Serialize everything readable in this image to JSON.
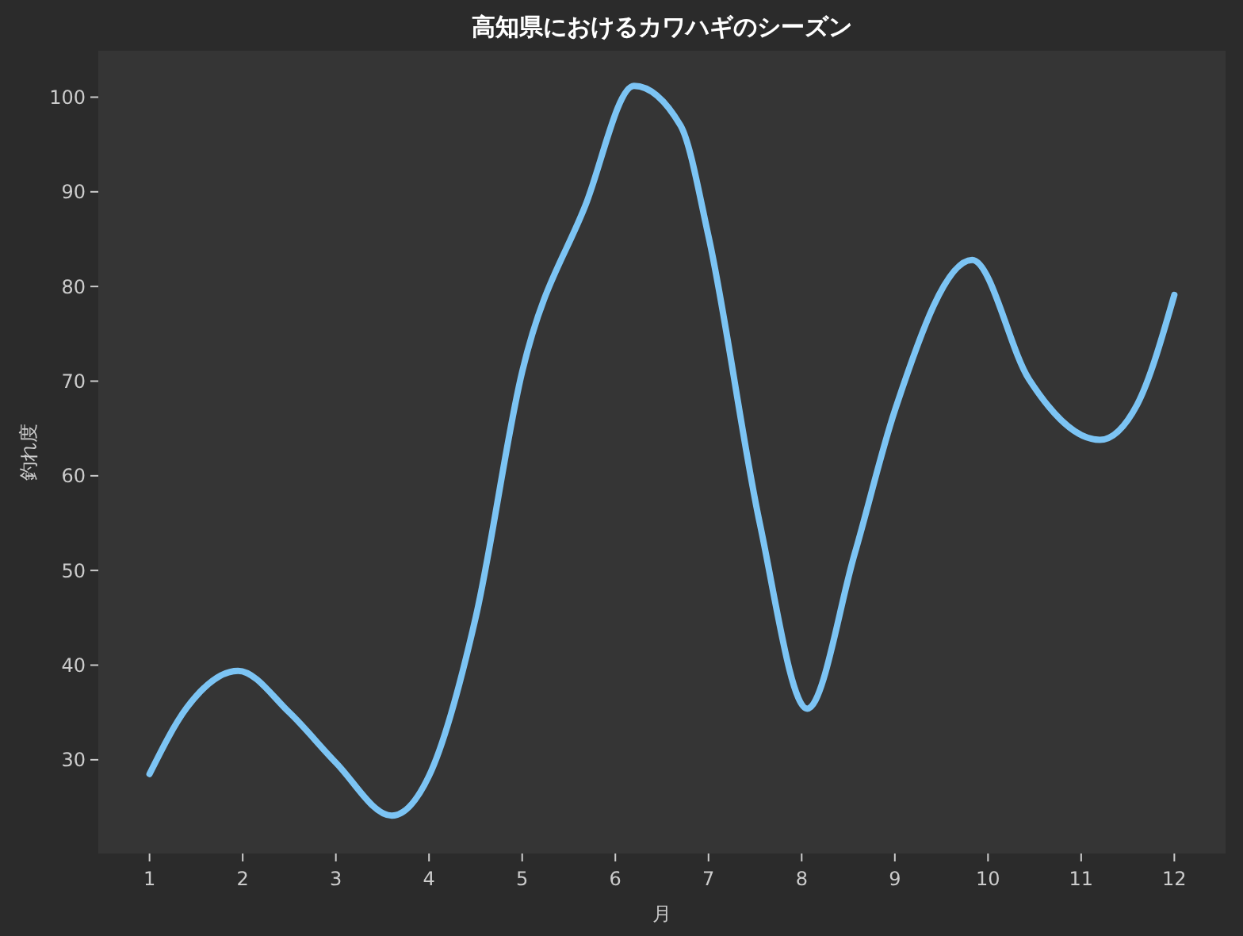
{
  "chart_data": {
    "type": "line",
    "title": "高知県におけるカワハギのシーズン",
    "xlabel": "月",
    "ylabel": "釣れ度",
    "xlim": [
      0.45,
      12.55
    ],
    "ylim": [
      20.1,
      104.9
    ],
    "xticks": [
      1,
      2,
      3,
      4,
      5,
      6,
      7,
      8,
      9,
      10,
      11,
      12
    ],
    "yticks": [
      30,
      40,
      50,
      60,
      70,
      80,
      90,
      100
    ],
    "grid": false,
    "marker": "none",
    "line_style": "solid",
    "series": [
      {
        "color": "#7cc4f4",
        "x": [
          1,
          1.4,
          1.95,
          2.5,
          3,
          3.6,
          4,
          4.5,
          5,
          5.68,
          6.2,
          6.7,
          7,
          7.55,
          8.06,
          8.57,
          9,
          9.83,
          10.44,
          11.2,
          11.6,
          12
        ],
        "values": [
          28.5,
          35.5,
          39.4,
          35,
          29.7,
          24.1,
          28.3,
          45,
          71,
          88.6,
          101.2,
          97,
          85.3,
          55,
          35.4,
          51.8,
          66.9,
          82.8,
          70.2,
          63.8,
          67.5,
          79.1
        ]
      }
    ]
  }
}
